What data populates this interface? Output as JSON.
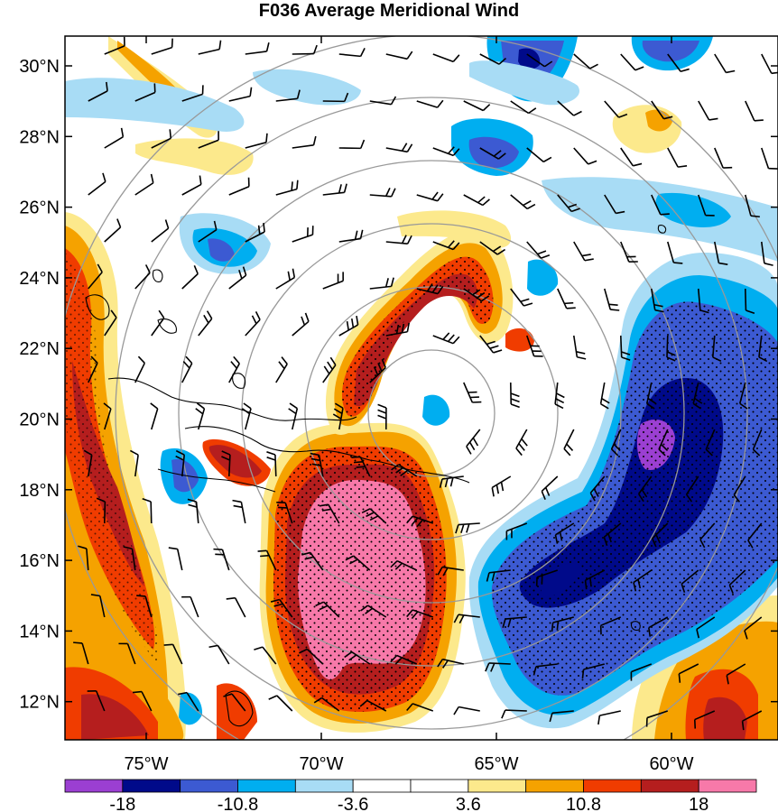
{
  "title": "F036 Average Meridional Wind",
  "latitude_labels": [
    "30°N",
    "28°N",
    "26°N",
    "24°N",
    "22°N",
    "20°N",
    "18°N",
    "16°N",
    "14°N",
    "12°N"
  ],
  "longitude_labels": [
    "75°W",
    "70°W",
    "65°W",
    "60°W"
  ],
  "colorbar": {
    "labels": [
      "-18",
      "-10.8",
      "-3.6",
      "3.6",
      "10.8",
      "18"
    ],
    "colors": [
      "#9b3fd2",
      "#000a8a",
      "#3c5ad2",
      "#00aef0",
      "#a8dcf5",
      "#ffffff",
      "#ffffff",
      "#fce98c",
      "#f5a200",
      "#f03c00",
      "#b51e1e",
      "#f779a9"
    ]
  },
  "colors": {
    "strong_positive": "#f779a9",
    "positive_high": "#b51e1e",
    "positive_mid": "#f03c00",
    "positive_low": "#f5a200",
    "positive_weak": "#fce98c",
    "negative_weak": "#a8dcf5",
    "negative_low": "#00aef0",
    "negative_mid": "#3c5ad2",
    "negative_high": "#000a8a",
    "strong_negative": "#9b3fd2",
    "range_rings": "#999999"
  }
}
